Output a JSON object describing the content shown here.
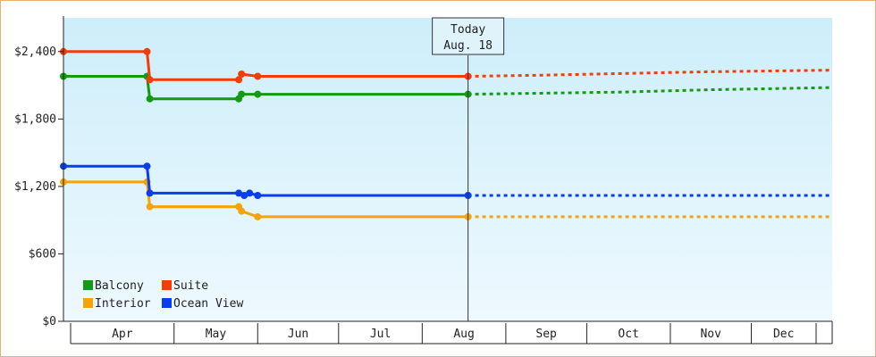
{
  "chart_data": {
    "type": "line",
    "title": "",
    "xlabel": "",
    "ylabel": "",
    "months": [
      "Apr",
      "May",
      "Jun",
      "Jul",
      "Aug",
      "Sep",
      "Oct",
      "Nov",
      "Dec"
    ],
    "ylim": [
      0,
      2700
    ],
    "y_ticks": [
      {
        "value": 0,
        "label": "$0"
      },
      {
        "value": 600,
        "label": "$600"
      },
      {
        "value": 1200,
        "label": "$1,200"
      },
      {
        "value": 1800,
        "label": "$1,800"
      },
      {
        "value": 2400,
        "label": "$2,400"
      }
    ],
    "today": {
      "line1": "Today",
      "line2": "Aug. 18",
      "date": "2024-08-18"
    },
    "x_range": [
      "2024-03-21",
      "2024-12-31"
    ],
    "legend_placement": "bottom-left",
    "colors": {
      "plot_top": "#cdeefa",
      "plot_bottom": "#eef9fe",
      "frame": "#e8b070"
    },
    "series": [
      {
        "name": "Balcony",
        "color": "#139a13",
        "points": [
          [
            "2024-03-21",
            2180
          ],
          [
            "2024-04-21",
            2180
          ],
          [
            "2024-04-22",
            1980
          ],
          [
            "2024-05-25",
            1980
          ],
          [
            "2024-05-26",
            2020
          ],
          [
            "2024-06-01",
            2020
          ],
          [
            "2024-08-18",
            2020
          ]
        ],
        "forecast": [
          [
            "2024-08-18",
            2020
          ],
          [
            "2024-09-15",
            2030
          ],
          [
            "2024-10-15",
            2040
          ],
          [
            "2024-11-15",
            2060
          ],
          [
            "2024-12-31",
            2080
          ]
        ]
      },
      {
        "name": "Suite",
        "color": "#f23c0a",
        "points": [
          [
            "2024-03-21",
            2400
          ],
          [
            "2024-04-21",
            2400
          ],
          [
            "2024-04-22",
            2150
          ],
          [
            "2024-05-25",
            2150
          ],
          [
            "2024-05-26",
            2200
          ],
          [
            "2024-06-01",
            2180
          ],
          [
            "2024-08-18",
            2180
          ]
        ],
        "forecast": [
          [
            "2024-08-18",
            2180
          ],
          [
            "2024-09-15",
            2190
          ],
          [
            "2024-10-15",
            2205
          ],
          [
            "2024-11-15",
            2220
          ],
          [
            "2024-12-31",
            2235
          ]
        ]
      },
      {
        "name": "Interior",
        "color": "#f5a30a",
        "points": [
          [
            "2024-03-21",
            1240
          ],
          [
            "2024-04-21",
            1240
          ],
          [
            "2024-04-22",
            1020
          ],
          [
            "2024-05-25",
            1020
          ],
          [
            "2024-05-26",
            980
          ],
          [
            "2024-06-01",
            930
          ],
          [
            "2024-08-18",
            930
          ]
        ],
        "forecast": [
          [
            "2024-08-18",
            930
          ],
          [
            "2024-12-31",
            930
          ]
        ]
      },
      {
        "name": "Ocean View",
        "color": "#0a3cf0",
        "points": [
          [
            "2024-03-21",
            1380
          ],
          [
            "2024-04-21",
            1380
          ],
          [
            "2024-04-22",
            1140
          ],
          [
            "2024-05-25",
            1140
          ],
          [
            "2024-05-27",
            1120
          ],
          [
            "2024-05-29",
            1140
          ],
          [
            "2024-06-01",
            1120
          ],
          [
            "2024-08-18",
            1120
          ]
        ],
        "forecast": [
          [
            "2024-08-18",
            1120
          ],
          [
            "2024-12-31",
            1120
          ]
        ]
      }
    ]
  }
}
